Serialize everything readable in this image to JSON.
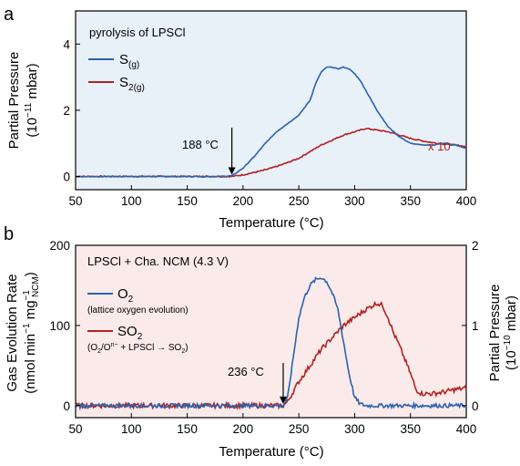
{
  "chart_data": [
    {
      "panel": "a",
      "type": "line",
      "title": "pyrolysis of LPSCl",
      "xlabel": "Temperature (°C)",
      "ylabel_line1": "Partial Pressure",
      "ylabel_line2_pre": "(10",
      "ylabel_line2_exp": "−11",
      "ylabel_line2_post": " mbar)",
      "xlim": [
        50,
        400
      ],
      "ylim": [
        -0.4,
        5
      ],
      "xticks": [
        50,
        100,
        150,
        200,
        250,
        300,
        350,
        400
      ],
      "yticks": [
        0,
        2,
        4
      ],
      "grid": false,
      "background": "#e8f0f8",
      "legend_position": "top-left",
      "annotations": [
        {
          "text": "188 °C",
          "arrow_at_x": 190
        },
        {
          "text": "x 10",
          "color": "#b22222",
          "near_series": "S2(g)"
        }
      ],
      "series": [
        {
          "name_base": "S",
          "name_sub": "(g)",
          "color": "#2a62b0",
          "points": [
            [
              50,
              0
            ],
            [
              100,
              0
            ],
            [
              150,
              0
            ],
            [
              180,
              0
            ],
            [
              190,
              0.02
            ],
            [
              200,
              0.25
            ],
            [
              210,
              0.6
            ],
            [
              220,
              1.0
            ],
            [
              230,
              1.35
            ],
            [
              240,
              1.6
            ],
            [
              250,
              1.85
            ],
            [
              260,
              2.3
            ],
            [
              265,
              2.8
            ],
            [
              270,
              3.15
            ],
            [
              275,
              3.3
            ],
            [
              280,
              3.3
            ],
            [
              285,
              3.25
            ],
            [
              290,
              3.3
            ],
            [
              295,
              3.25
            ],
            [
              300,
              3.1
            ],
            [
              305,
              2.9
            ],
            [
              310,
              2.6
            ],
            [
              320,
              2.0
            ],
            [
              330,
              1.5
            ],
            [
              340,
              1.2
            ],
            [
              350,
              1.0
            ],
            [
              360,
              0.95
            ],
            [
              370,
              0.95
            ],
            [
              380,
              1.0
            ],
            [
              390,
              0.95
            ],
            [
              400,
              0.85
            ]
          ]
        },
        {
          "name_base": "S",
          "name_sub": "2(g)",
          "color": "#b22222",
          "points": [
            [
              50,
              0
            ],
            [
              100,
              0
            ],
            [
              150,
              0
            ],
            [
              180,
              0
            ],
            [
              190,
              0
            ],
            [
              200,
              0.05
            ],
            [
              210,
              0.12
            ],
            [
              220,
              0.2
            ],
            [
              230,
              0.3
            ],
            [
              240,
              0.42
            ],
            [
              250,
              0.55
            ],
            [
              260,
              0.75
            ],
            [
              270,
              0.95
            ],
            [
              280,
              1.1
            ],
            [
              290,
              1.25
            ],
            [
              300,
              1.35
            ],
            [
              310,
              1.45
            ],
            [
              320,
              1.4
            ],
            [
              330,
              1.35
            ],
            [
              340,
              1.25
            ],
            [
              350,
              1.15
            ],
            [
              360,
              1.08
            ],
            [
              370,
              1.02
            ],
            [
              380,
              0.98
            ],
            [
              390,
              0.95
            ],
            [
              400,
              0.9
            ]
          ]
        }
      ]
    },
    {
      "panel": "b",
      "type": "line",
      "title": "LPSCl + Cha. NCM (4.3 V)",
      "xlabel": "Temperature (°C)",
      "ylabel_line1": "Gas Evolution Rate",
      "ylabel_line2": "(nmol min",
      "ylabel_right_line1": "Partial Pressure",
      "ylabel_right_line2_pre": "(10",
      "ylabel_right_line2_exp": "−10",
      "ylabel_right_line2_post": " mbar)",
      "xlim": [
        50,
        400
      ],
      "ylim": [
        -15,
        200
      ],
      "ylim_right": [
        -0.15,
        2
      ],
      "xticks": [
        50,
        100,
        150,
        200,
        250,
        300,
        350,
        400
      ],
      "yticks": [
        0,
        100,
        200
      ],
      "yticks_right": [
        0,
        1,
        2
      ],
      "grid": false,
      "background": "#fbeaea",
      "legend_position": "top-left",
      "annotations": [
        {
          "text": "236 °C",
          "arrow_at_x": 236
        }
      ],
      "series": [
        {
          "name_base": "O",
          "name_sub": "2",
          "note": "(lattice oxygen evolution)",
          "color": "#2a62b0",
          "axis": "left",
          "points": [
            [
              50,
              0
            ],
            [
              100,
              0
            ],
            [
              150,
              0
            ],
            [
              200,
              0
            ],
            [
              230,
              0
            ],
            [
              236,
              0
            ],
            [
              240,
              10
            ],
            [
              245,
              60
            ],
            [
              250,
              110
            ],
            [
              255,
              135
            ],
            [
              260,
              150
            ],
            [
              265,
              157
            ],
            [
              270,
              160
            ],
            [
              275,
              155
            ],
            [
              280,
              140
            ],
            [
              285,
              120
            ],
            [
              290,
              80
            ],
            [
              295,
              40
            ],
            [
              300,
              10
            ],
            [
              305,
              2
            ],
            [
              310,
              0
            ],
            [
              350,
              0
            ],
            [
              400,
              0
            ]
          ]
        },
        {
          "name_base": "SO",
          "name_sub": "2",
          "color": "#b22222",
          "axis": "right",
          "note": "(O2/On− + LPSCl → SO2)",
          "points": [
            [
              50,
              0
            ],
            [
              100,
              0
            ],
            [
              150,
              0
            ],
            [
              200,
              0
            ],
            [
              230,
              0
            ],
            [
              236,
              0
            ],
            [
              240,
              0.05
            ],
            [
              250,
              0.3
            ],
            [
              260,
              0.5
            ],
            [
              270,
              0.7
            ],
            [
              280,
              0.85
            ],
            [
              290,
              1.0
            ],
            [
              300,
              1.1
            ],
            [
              310,
              1.2
            ],
            [
              320,
              1.28
            ],
            [
              325,
              1.25
            ],
            [
              330,
              1.1
            ],
            [
              335,
              0.9
            ],
            [
              340,
              0.75
            ],
            [
              350,
              0.4
            ],
            [
              355,
              0.2
            ],
            [
              360,
              0.15
            ],
            [
              370,
              0.15
            ],
            [
              380,
              0.17
            ],
            [
              390,
              0.2
            ],
            [
              400,
              0.22
            ]
          ]
        }
      ]
    }
  ],
  "labels": {
    "panel_a": "a",
    "panel_b": "b",
    "arrow_a": "188 °C",
    "arrow_b": "236 °C",
    "times10": "x 10",
    "o2_note": "(lattice oxygen evolution)",
    "so2_note_pre": "(O",
    "so2_note_mid1": "2",
    "so2_note_mid2": "/O",
    "so2_note_sup": "n−",
    "so2_note_post": " + LPSCl → SO",
    "so2_note_end": "2",
    "so2_note_close": ")",
    "b_ylabel_min_sup": "−1",
    "b_ylabel_mg": " mg",
    "b_ylabel_sup2": "−1",
    "b_ylabel_sub": "NCM",
    "b_ylabel_close": ")"
  }
}
